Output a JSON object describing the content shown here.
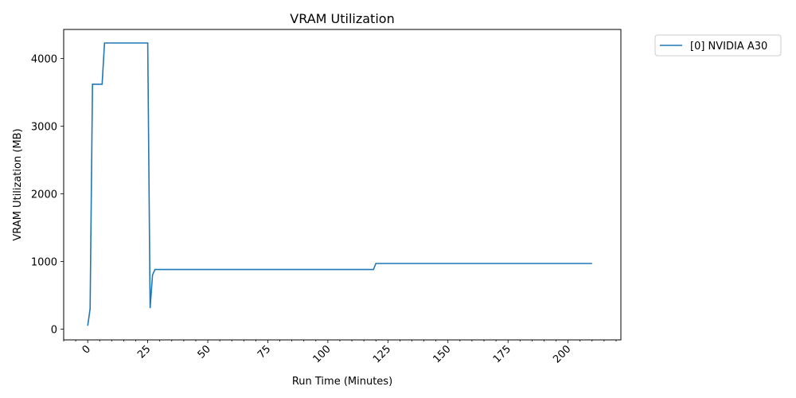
{
  "chart_data": {
    "type": "line",
    "title": "VRAM Utilization",
    "xlabel": "Run Time (Minutes)",
    "ylabel": "VRAM Utilization (MB)",
    "xlim": [
      -10,
      222
    ],
    "ylim": [
      -160,
      4430
    ],
    "x_ticks": [
      0,
      25,
      50,
      75,
      100,
      125,
      150,
      175,
      200
    ],
    "x_tick_labels": [
      "0",
      "25",
      "50",
      "75",
      "100",
      "125",
      "150",
      "175",
      "200"
    ],
    "y_ticks": [
      0,
      1000,
      2000,
      3000,
      4000
    ],
    "y_tick_labels": [
      "0",
      "1000",
      "2000",
      "3000",
      "4000"
    ],
    "x_minor_step": 5,
    "grid": false,
    "legend_position": "outside-top-right",
    "series": [
      {
        "name": "[0] NVIDIA A30",
        "color": "#1f77b4",
        "points": [
          [
            0,
            50
          ],
          [
            1,
            300
          ],
          [
            2,
            3620
          ],
          [
            3,
            3620
          ],
          [
            4,
            3620
          ],
          [
            5,
            3620
          ],
          [
            6,
            3620
          ],
          [
            7,
            4230
          ],
          [
            10,
            4230
          ],
          [
            15,
            4230
          ],
          [
            20,
            4230
          ],
          [
            25,
            4230
          ],
          [
            26,
            310
          ],
          [
            27,
            800
          ],
          [
            28,
            880
          ],
          [
            40,
            880
          ],
          [
            60,
            880
          ],
          [
            80,
            880
          ],
          [
            100,
            880
          ],
          [
            119,
            880
          ],
          [
            120,
            970
          ],
          [
            140,
            970
          ],
          [
            160,
            970
          ],
          [
            180,
            970
          ],
          [
            200,
            970
          ],
          [
            210,
            970
          ]
        ]
      }
    ]
  }
}
